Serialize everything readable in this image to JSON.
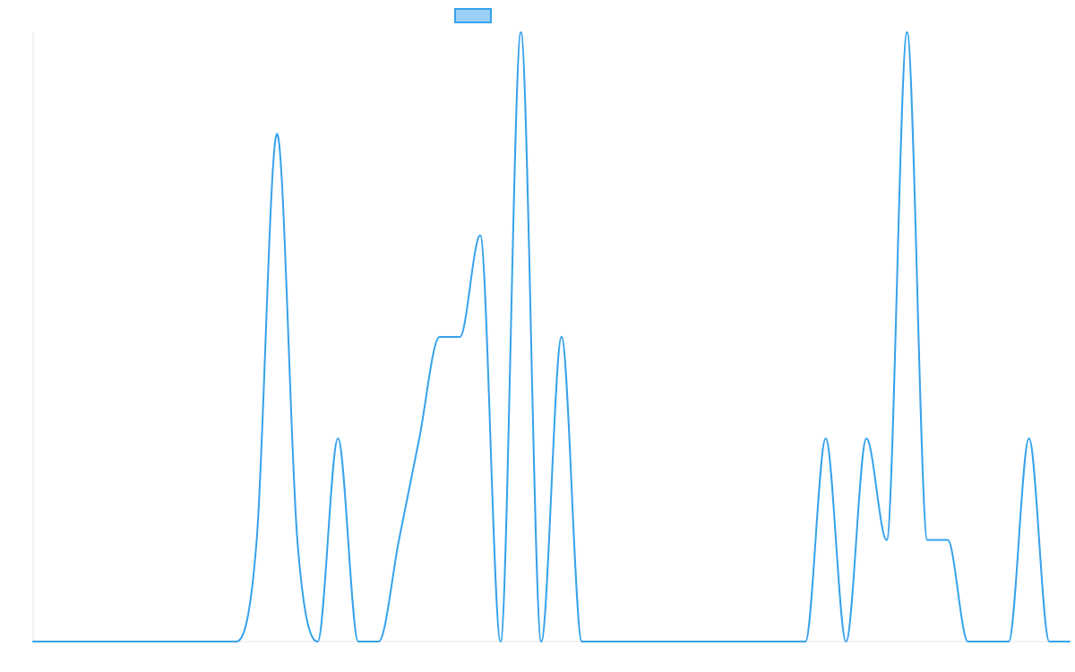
{
  "colors": {
    "series_stroke": "#36a2eb",
    "legend_fill": "#9ad0f5",
    "axis": "#e6e6e6"
  },
  "chart_data": {
    "type": "line",
    "title": "",
    "xlabel": "",
    "ylabel": "",
    "ticks_visible": false,
    "grid": false,
    "legend": {
      "position": "top-center",
      "entries": [
        ""
      ]
    },
    "xlim": [
      0,
      51
    ],
    "ylim": [
      0,
      6
    ],
    "x": [
      0,
      1,
      2,
      3,
      4,
      5,
      6,
      7,
      8,
      9,
      10,
      11,
      12,
      13,
      14,
      15,
      16,
      17,
      18,
      19,
      20,
      21,
      22,
      23,
      24,
      25,
      26,
      27,
      28,
      29,
      30,
      31,
      32,
      33,
      34,
      35,
      36,
      37,
      38,
      39,
      40,
      41,
      42,
      43,
      44,
      45,
      46,
      47,
      48,
      49,
      50,
      51
    ],
    "series": [
      {
        "name": "",
        "values": [
          0,
          0,
          0,
          0,
          0,
          0,
          0,
          0,
          0,
          0,
          0,
          1,
          5,
          1,
          0,
          2,
          0,
          0,
          1,
          2,
          3,
          3,
          4,
          0,
          6,
          0,
          3,
          0,
          0,
          0,
          0,
          0,
          0,
          0,
          0,
          0,
          0,
          0,
          0,
          2,
          0,
          2,
          1,
          6,
          1,
          1,
          0,
          0,
          0,
          2,
          0,
          0
        ]
      }
    ]
  }
}
